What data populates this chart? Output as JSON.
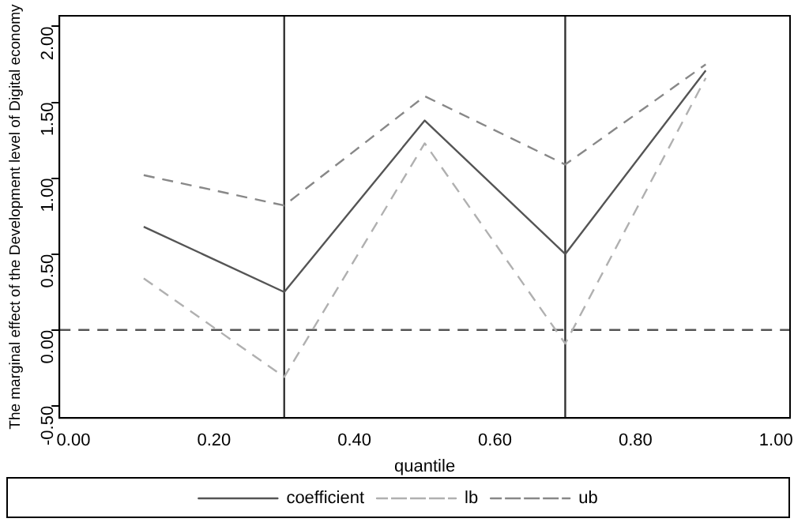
{
  "chart_data": {
    "type": "line",
    "xlabel": "quantile",
    "ylabel": "The marginal effect of the Development level of Digital economy",
    "x": [
      0.1,
      0.3,
      0.5,
      0.7,
      0.9
    ],
    "series": [
      {
        "name": "coefficient",
        "color": "#555555",
        "line_style": "solid",
        "values": [
          0.68,
          0.25,
          1.38,
          0.5,
          1.71
        ]
      },
      {
        "name": "lb",
        "color": "#b0b0b0",
        "line_style": "dashed",
        "values": [
          0.34,
          -0.31,
          1.23,
          -0.09,
          1.66
        ]
      },
      {
        "name": "ub",
        "color": "#888888",
        "line_style": "dashed",
        "values": [
          1.02,
          0.82,
          1.54,
          1.09,
          1.75
        ]
      }
    ],
    "xlim": [
      -0.02,
      1.02
    ],
    "xticks": [
      {
        "value": 0,
        "label": "0.00"
      },
      {
        "value": 0.2,
        "label": "0.20"
      },
      {
        "value": 0.4,
        "label": "0.40"
      },
      {
        "value": 0.6,
        "label": "0.60"
      },
      {
        "value": 0.8,
        "label": "0.80"
      },
      {
        "value": 1,
        "label": "1.00"
      }
    ],
    "ylim": [
      -0.58,
      2.07
    ],
    "yticks": [
      {
        "value": -0.5,
        "label": "-0.50"
      },
      {
        "value": 0,
        "label": "0.00"
      },
      {
        "value": 0.5,
        "label": "0.50"
      },
      {
        "value": 1,
        "label": "1.00"
      },
      {
        "value": 1.5,
        "label": "1.50"
      },
      {
        "value": 2,
        "label": "2.00"
      }
    ],
    "ref_lines": [
      {
        "axis": "x",
        "value": 0.3,
        "color": "#333333",
        "line_style": "solid"
      },
      {
        "axis": "x",
        "value": 0.7,
        "color": "#333333",
        "line_style": "solid"
      },
      {
        "axis": "y",
        "value": 0,
        "color": "#555555",
        "line_style": "dashed"
      }
    ],
    "grid": false,
    "legend": "bottom",
    "marker": "none"
  }
}
